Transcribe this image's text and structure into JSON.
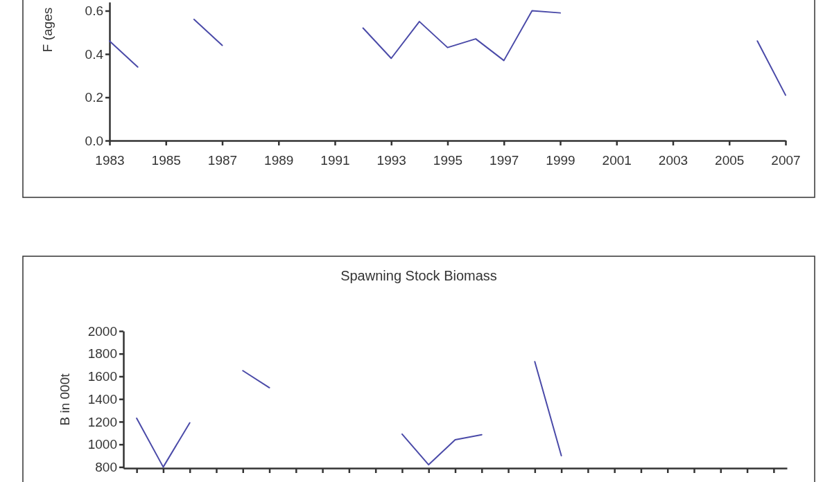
{
  "chart_data": [
    {
      "type": "line",
      "ylabel": "F (ages",
      "x": [
        1983,
        1984,
        1985,
        1986,
        1987,
        1988,
        1989,
        1990,
        1991,
        1992,
        1993,
        1994,
        1995,
        1996,
        1997,
        1998,
        1999,
        2000,
        2001,
        2002,
        2003,
        2004,
        2005,
        2006,
        2007
      ],
      "series": [
        {
          "color": "#4a4aa8",
          "values": [
            0.46,
            0.34,
            null,
            0.56,
            0.44,
            null,
            null,
            null,
            null,
            0.52,
            0.38,
            0.55,
            0.43,
            0.47,
            0.37,
            0.6,
            0.59,
            null,
            null,
            null,
            null,
            null,
            null,
            0.46,
            0.21
          ]
        }
      ],
      "xlim": [
        1983,
        2007
      ],
      "xticks": [
        1983,
        1985,
        1987,
        1989,
        1991,
        1993,
        1995,
        1997,
        1999,
        2001,
        2003,
        2005,
        2007
      ],
      "ylim": [
        0,
        0.64
      ],
      "yticks": [
        {
          "value": 0,
          "label": "0.0"
        },
        0.2,
        0.4,
        0.6
      ],
      "grid": false,
      "legend": false,
      "marker": "none",
      "line_style": "solid"
    },
    {
      "type": "line",
      "title": "Spawning Stock Biomass",
      "ylabel": "B in 000t",
      "categories": [
        null,
        null,
        null,
        null,
        null,
        null,
        null,
        null,
        null,
        null,
        null,
        null,
        null,
        null,
        null,
        null,
        null,
        null,
        null,
        null,
        null,
        null,
        null,
        null,
        null
      ],
      "series": [
        {
          "color": "#4a4aa8",
          "values": [
            1230,
            800,
            1190,
            null,
            1650,
            1500,
            null,
            null,
            null,
            null,
            1090,
            820,
            1040,
            1085,
            null,
            1730,
            900,
            null,
            null,
            null,
            null,
            null,
            null,
            null,
            null
          ]
        }
      ],
      "ylim": [
        790,
        2000
      ],
      "yticks": [
        800,
        1000,
        1200,
        1400,
        1600,
        1800,
        2000
      ],
      "tick_labels": "y",
      "grid": false,
      "legend": false,
      "marker": "none",
      "line_style": "solid"
    }
  ]
}
